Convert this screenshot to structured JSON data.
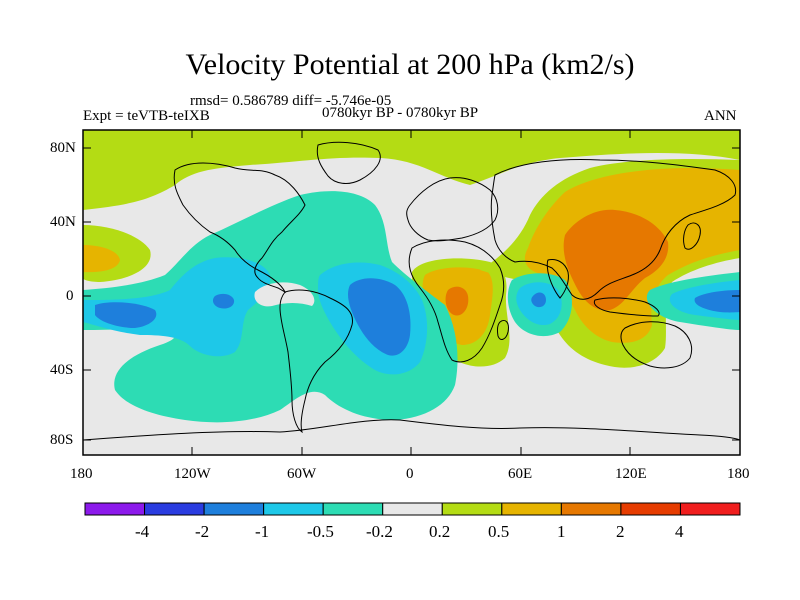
{
  "title": "Velocity Potential at 200 hPa (km2/s)",
  "stats": "rmsd= 0.586789 diff= -5.746e-05",
  "experiment": "Expt = teVTB-teIXB",
  "period": "0780kyr BP - 0780kyr BP",
  "season": "ANN",
  "map": {
    "lat_labels": [
      "80N",
      "40N",
      "0",
      "40S",
      "80S"
    ],
    "lon_labels": [
      "180",
      "120W",
      "60W",
      "0",
      "60E",
      "120E",
      "180"
    ]
  },
  "colorbar": {
    "labels": [
      "-4",
      "-2",
      "-1",
      "-0.5",
      "-0.2",
      "0.2",
      "0.5",
      "1",
      "2",
      "4"
    ],
    "colors": [
      "#8c1aeb",
      "#2a3ce0",
      "#1e7fdc",
      "#1ec8e8",
      "#2ddcb4",
      "#e8e8e8",
      "#b4dc14",
      "#e6b400",
      "#e67800",
      "#e63c00",
      "#f01e1e"
    ]
  },
  "colors": {
    "neutral": "#e8e8e8",
    "pos1": "#b4dc14",
    "pos2": "#e6b400",
    "pos3": "#e67800",
    "neg1": "#2ddcb4",
    "neg2": "#1ec8e8",
    "neg3": "#1e7fdc"
  }
}
